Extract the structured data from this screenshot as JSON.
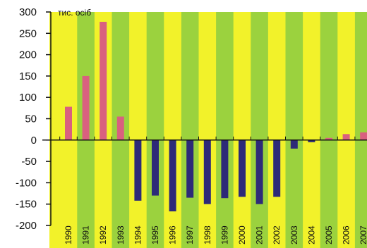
{
  "chart_data": {
    "type": "bar",
    "unit_label": "тис. осіб",
    "ylim": [
      -200,
      300
    ],
    "y_ticks": [
      300,
      250,
      200,
      150,
      100,
      50,
      0,
      -50,
      -100,
      -150,
      -200
    ],
    "grid": false,
    "legend": "none",
    "categories": [
      "1990",
      "1991",
      "1992",
      "1993",
      "1994",
      "1995",
      "1996",
      "1997",
      "1998",
      "1999",
      "2000",
      "2001",
      "2002",
      "2003",
      "2004",
      "2005",
      "2006",
      "2007"
    ],
    "values": [
      78,
      150,
      277,
      55,
      -142,
      -130,
      -167,
      -135,
      -150,
      -136,
      -133,
      -150,
      -133,
      -20,
      -5,
      5,
      14,
      18
    ],
    "colors": {
      "positive": "#d9607f",
      "negative": "#2d2a78",
      "band_yellow": "#f2f22a",
      "band_green": "#9bd23e",
      "axis": "#111111"
    }
  }
}
